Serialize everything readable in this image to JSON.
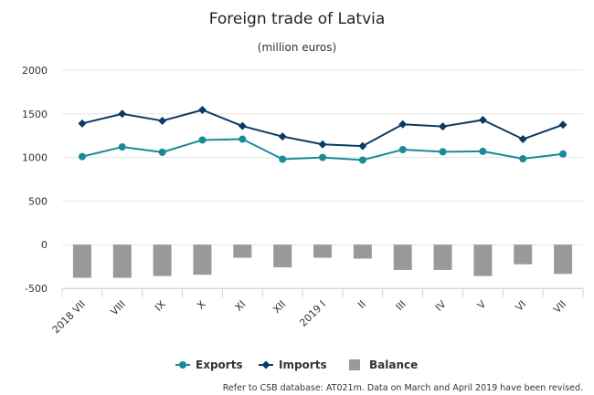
{
  "chart_data": {
    "type": "bar+line",
    "title": "Foreign trade of Latvia",
    "subtitle": "(million euros)",
    "categories": [
      "2018 VII",
      "VIII",
      "IX",
      "X",
      "XI",
      "XII",
      "2019 I",
      "II",
      "III",
      "IV",
      "V",
      "VI",
      "VII"
    ],
    "series": [
      {
        "name": "Exports",
        "type": "line",
        "color": "#1a8a99",
        "marker": "circle",
        "values": [
          1010,
          1120,
          1060,
          1200,
          1210,
          980,
          1000,
          970,
          1090,
          1065,
          1070,
          985,
          1040
        ]
      },
      {
        "name": "Imports",
        "type": "line",
        "color": "#0d3b66",
        "marker": "diamond",
        "values": [
          1390,
          1500,
          1420,
          1545,
          1360,
          1240,
          1150,
          1130,
          1380,
          1355,
          1430,
          1210,
          1375
        ]
      },
      {
        "name": "Balance",
        "type": "bar",
        "color": "#999999",
        "values": [
          -380,
          -380,
          -360,
          -345,
          -150,
          -260,
          -150,
          -160,
          -290,
          -290,
          -360,
          -225,
          -335
        ]
      }
    ],
    "ylim": [
      -500,
      2000
    ],
    "yticks": [
      -500,
      0,
      500,
      1000,
      1500,
      2000
    ],
    "grid": true,
    "legend_position": "bottom-center",
    "credit": "Refer to CSB database: AT021m. Data on March and April 2019 have been revised."
  }
}
